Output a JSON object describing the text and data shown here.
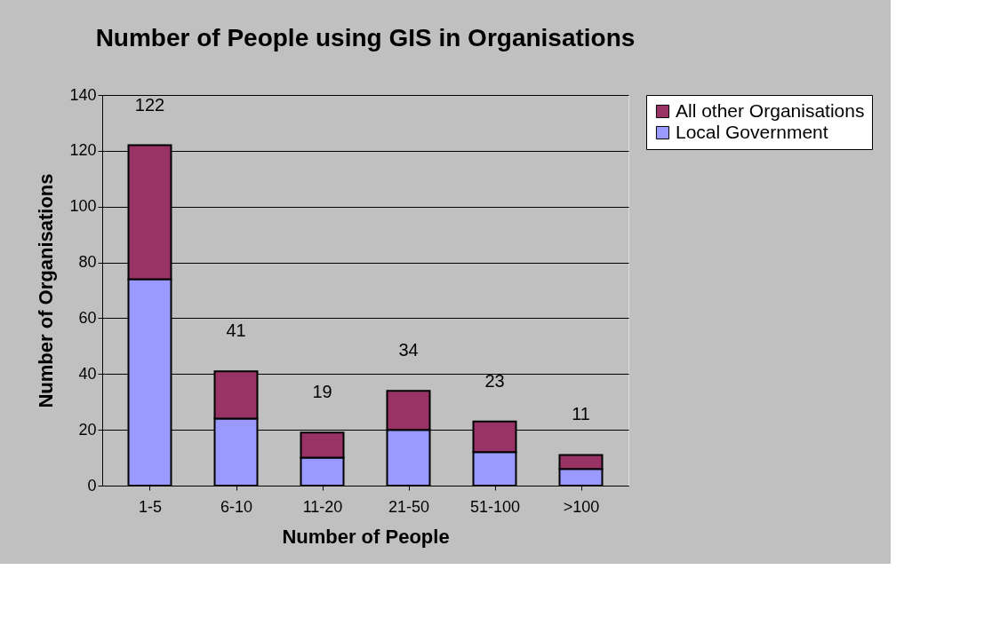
{
  "chart_data": {
    "type": "bar",
    "title": "Number of People using GIS in Organisations",
    "xlabel": "Number of People",
    "ylabel": "Number of Organisations",
    "categories": [
      "1-5",
      "6-10",
      "11-20",
      "21-50",
      "51-100",
      ">100"
    ],
    "series": [
      {
        "name": "Local Government",
        "color": "#9999ff",
        "values": [
          74,
          24,
          10,
          20,
          12,
          6
        ]
      },
      {
        "name": "All other Organisations",
        "color": "#993366",
        "values": [
          48,
          17,
          9,
          14,
          11,
          5
        ]
      }
    ],
    "stacked": true,
    "totals": [
      "122",
      "41",
      "19",
      "34",
      "23",
      "11"
    ],
    "ylim": [
      0,
      140
    ],
    "yticks": [
      0,
      20,
      40,
      60,
      80,
      100,
      120,
      140
    ],
    "grid": "y",
    "legend": "right"
  }
}
